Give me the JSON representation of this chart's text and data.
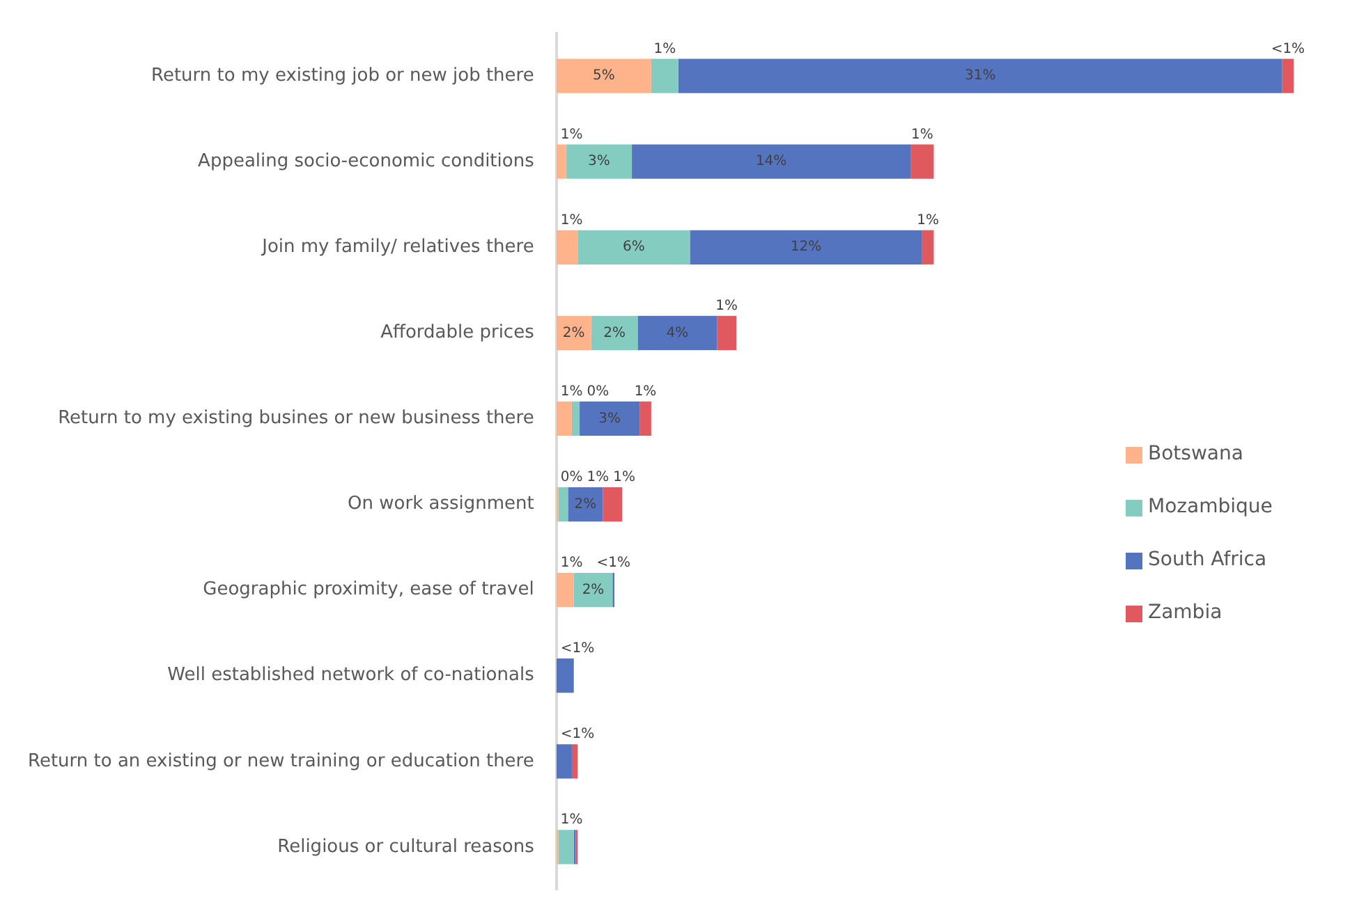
{
  "chart_data": {
    "type": "bar",
    "orientation": "horizontal",
    "stacked": true,
    "tick_labels": "y",
    "legend": "right",
    "categories": [
      "Return to my existing job or new job there",
      "Appealing socio-economic conditions",
      "Join my family/ relatives there",
      "Affordable prices",
      "Return to my existing busines or new business there",
      "On work assignment",
      "Geographic proximity, ease of travel",
      "Well established network of co-nationals",
      "Return to an existing or new training or education there",
      "Religious or cultural reasons"
    ],
    "series": [
      {
        "name": "Botswana",
        "color": "#ffb38a",
        "values": [
          4.9,
          0.5,
          1.1,
          1.8,
          0.8,
          0.1,
          0.9,
          0,
          0,
          0.1
        ],
        "value_labels": [
          "5%",
          "1%",
          "1%",
          "2%",
          "1%",
          "0%",
          "1%",
          null,
          null,
          null
        ]
      },
      {
        "name": "Mozambique",
        "color": "#84cbc0",
        "values": [
          1.4,
          3.4,
          5.8,
          2.4,
          0.4,
          0.5,
          2.0,
          0,
          0,
          0.8
        ],
        "value_labels": [
          "1%",
          "3%",
          "6%",
          "2%",
          "0%",
          "1%",
          "2%",
          null,
          null,
          "1%"
        ]
      },
      {
        "name": "South Africa",
        "color": "#5574bf",
        "values": [
          31.2,
          14.4,
          12.0,
          4.1,
          3.1,
          1.8,
          0.1,
          0.9,
          0.8,
          0.1
        ],
        "value_labels": [
          "31%",
          "14%",
          "12%",
          "4%",
          "3%",
          "2%",
          "<1%",
          "<1%",
          "<1%",
          null
        ]
      },
      {
        "name": "Zambia",
        "color": "#e0595f",
        "values": [
          0.6,
          1.2,
          0.6,
          1.0,
          0.6,
          1.0,
          0,
          0,
          0.3,
          0.1
        ],
        "value_labels": [
          "<1%",
          "1%",
          "1%",
          "1%",
          "1%",
          "1%",
          null,
          null,
          null,
          null
        ]
      }
    ]
  }
}
